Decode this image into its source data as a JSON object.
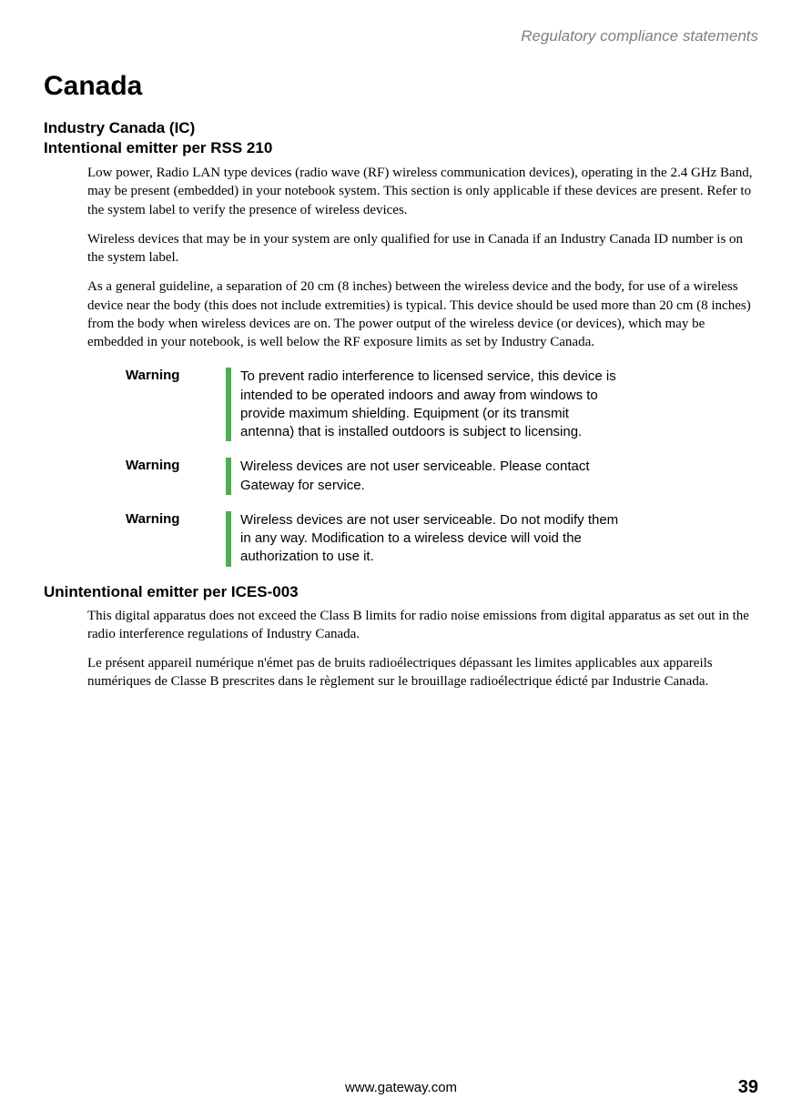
{
  "header": {
    "section_title": "Regulatory compliance statements"
  },
  "main": {
    "title": "Canada",
    "subheading_line1": "Industry Canada (IC)",
    "subheading_line2": "Intentional emitter per RSS 210",
    "para1": "Low power, Radio LAN type devices (radio wave (RF) wireless communication devices), operating in the 2.4 GHz Band, may be present (embedded) in your notebook system. This section is only applicable if these devices are present. Refer to the system label to verify the presence of wireless devices.",
    "para2": "Wireless devices that may be in your system are only qualified for use in Canada if an Industry Canada ID number is on the system label.",
    "para3": "As a general guideline, a separation of 20 cm (8 inches) between the wireless device and the body, for use of a wireless device near the body (this does not include extremities) is typical. This device should be used more than 20 cm (8 inches) from the body when wireless devices are on. The power output of the wireless device (or devices), which may be embedded in your notebook, is well below the RF exposure limits as set by Industry Canada.",
    "warnings": [
      {
        "label": "Warning",
        "text": "To prevent radio interference to licensed service, this device is intended to be operated indoors and away from windows to provide maximum shielding. Equipment (or its transmit antenna) that is installed outdoors is subject to licensing."
      },
      {
        "label": "Warning",
        "text": "Wireless devices are not user serviceable. Please contact Gateway for service."
      },
      {
        "label": "Warning",
        "text": "Wireless devices are not user serviceable. Do not modify them in any way. Modification to a wireless device will void the authorization to use it."
      }
    ],
    "section2_heading": "Unintentional emitter per ICES-003",
    "section2_para1": "This digital apparatus does not exceed the Class B limits for radio noise emissions from digital apparatus as set out in the radio interference regulations of Industry Canada.",
    "section2_para2": "Le présent appareil numérique n'émet pas de bruits radioélectriques dépassant les limites applicables aux appareils numériques de Classe B prescrites dans le règlement sur le brouillage radioélectrique édicté par Industrie Canada."
  },
  "footer": {
    "url": "www.gateway.com",
    "page_number": "39"
  },
  "colors": {
    "header_gray": "#808080",
    "warning_bar": "#4caf50",
    "text": "#000000",
    "background": "#ffffff"
  }
}
